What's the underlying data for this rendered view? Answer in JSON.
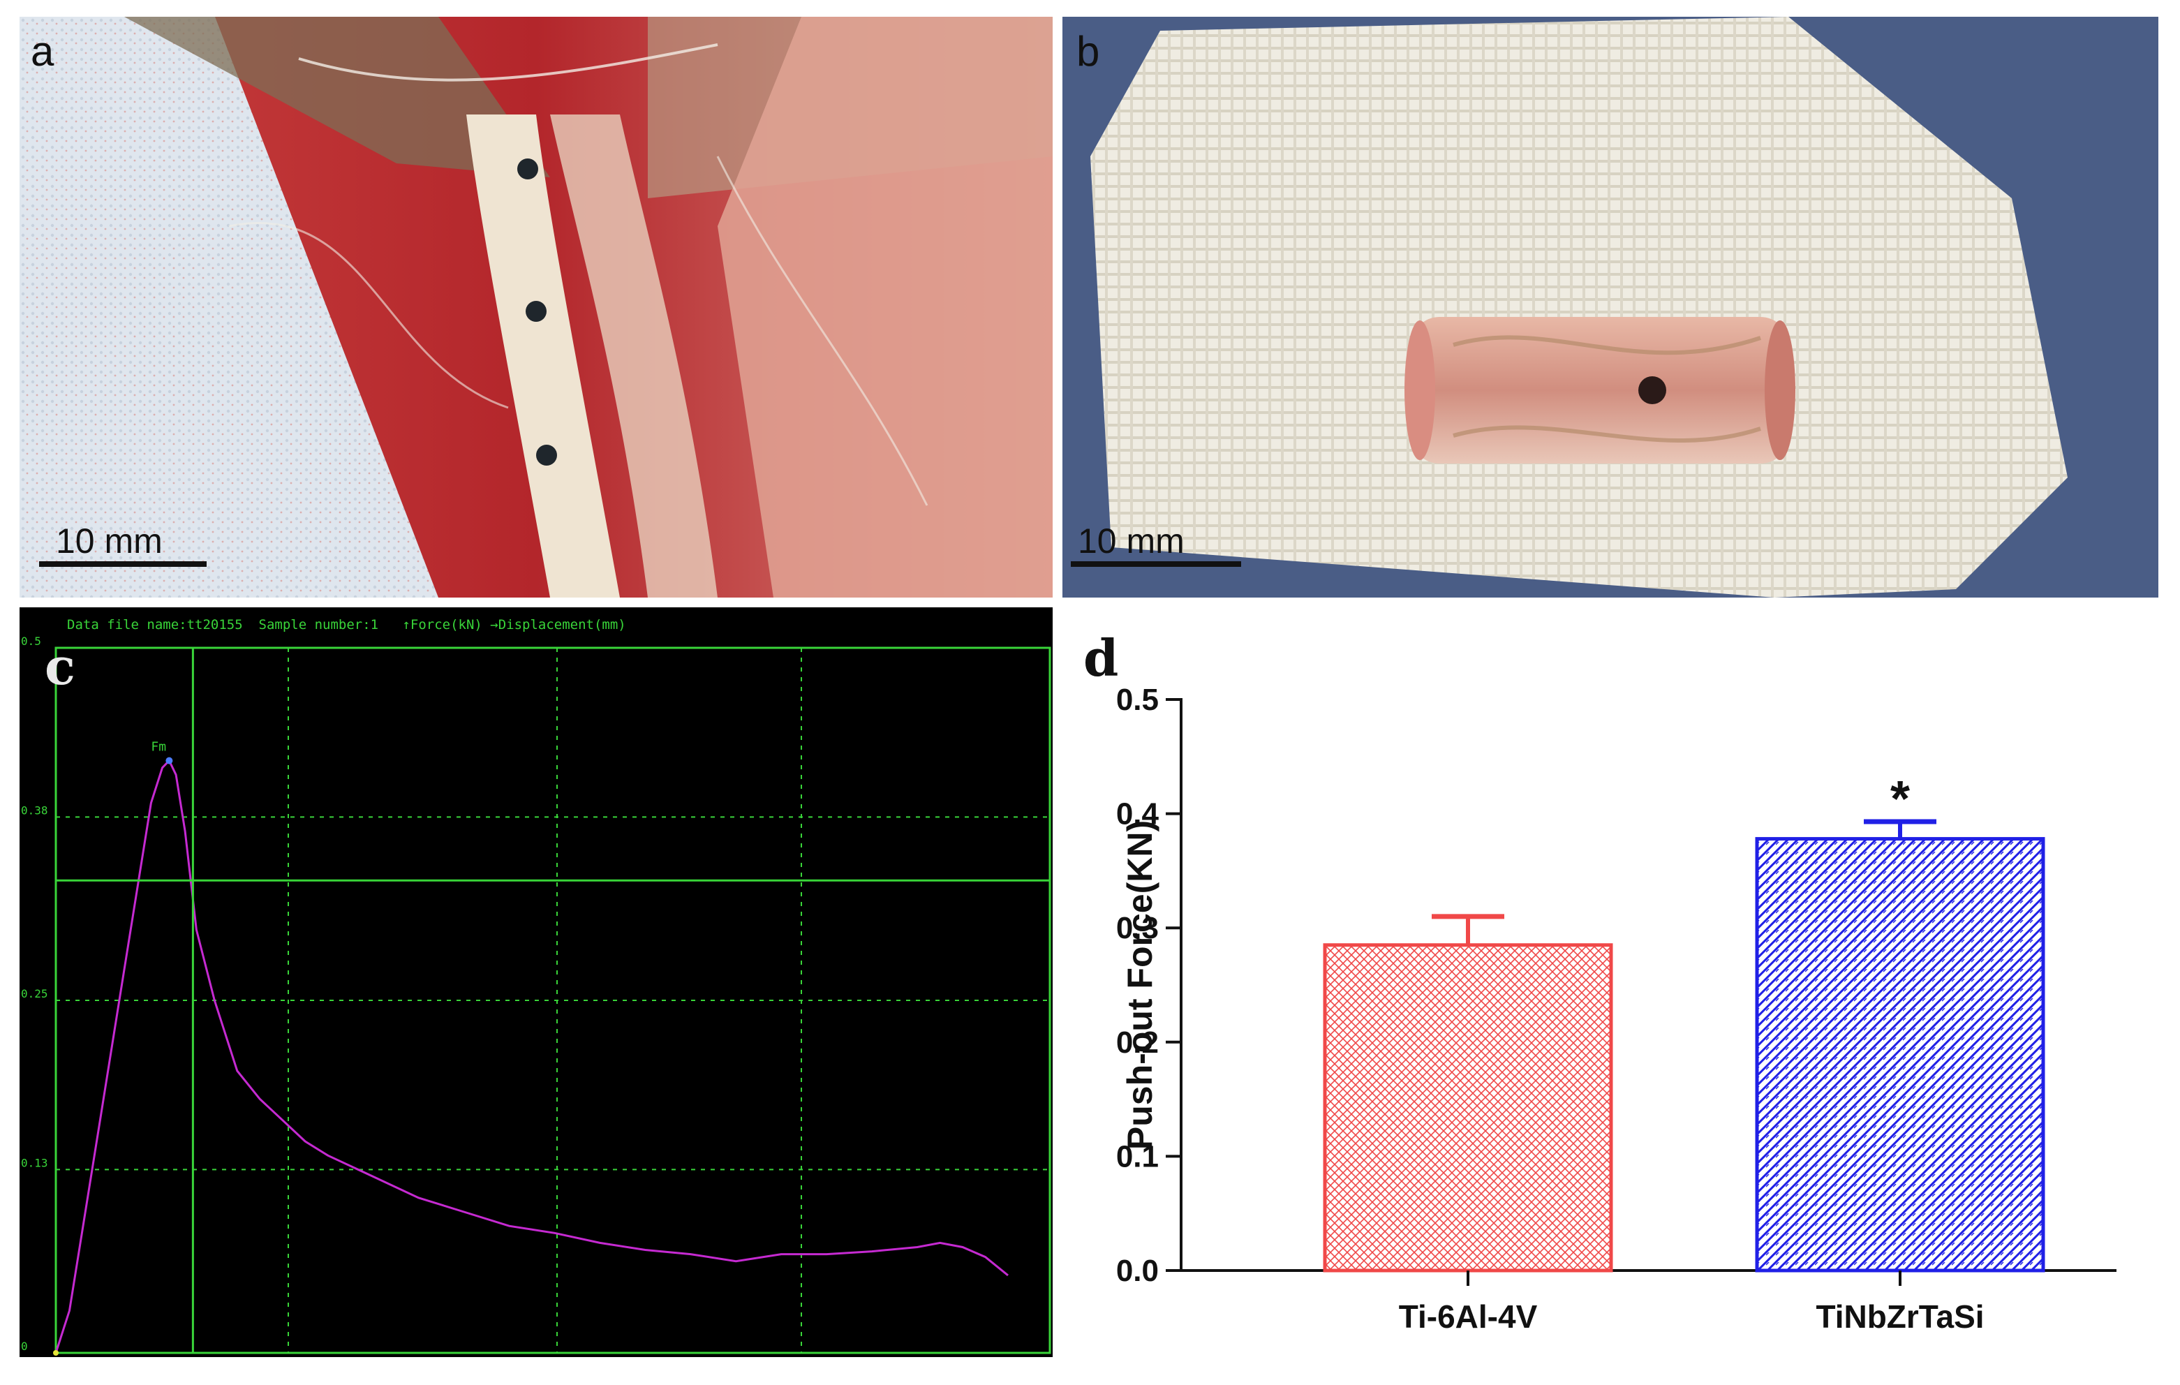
{
  "panels": {
    "a": {
      "label": "a",
      "scale_bar": "10 mm"
    },
    "b": {
      "label": "b",
      "scale_bar": "10 mm"
    },
    "c": {
      "label": "c",
      "header": "Data file name:tt20155  Sample number:1   ↑Force(kN) →Displacement(mm)",
      "peak_label": "Fm",
      "y_ticks": [
        "0",
        "0.13",
        "0.25",
        "0.38",
        "0.5"
      ]
    },
    "d": {
      "label": "d"
    }
  },
  "colors": {
    "ti6al4v": "#f04848",
    "tinbzrtasi": "#2020e6",
    "curve": "#c52ad1",
    "grid": "#39d439"
  },
  "chart_data": [
    {
      "type": "line",
      "panel": "c",
      "ylabel": "Force(kN)",
      "xlabel": "Displacement(mm)",
      "ylim": [
        0,
        0.5
      ],
      "y_ticks": [
        0,
        0.13,
        0.25,
        0.38,
        0.5
      ],
      "grid": true,
      "series": [
        {
          "name": "Force(kN)",
          "x": [
            0,
            0.3,
            0.6,
            1.0,
            1.4,
            1.8,
            2.1,
            2.35,
            2.5,
            2.65,
            2.85,
            3.1,
            3.5,
            4.0,
            4.5,
            5.0,
            5.5,
            6.0,
            7.0,
            8.0,
            9.0,
            10.0,
            11.0,
            12.0,
            13.0,
            14.0,
            15.0,
            16.0,
            17.0,
            18.0,
            19.0,
            19.5,
            20.0,
            20.5,
            21.0
          ],
          "y": [
            0.0,
            0.03,
            0.09,
            0.17,
            0.25,
            0.33,
            0.39,
            0.415,
            0.42,
            0.41,
            0.37,
            0.3,
            0.25,
            0.2,
            0.18,
            0.165,
            0.15,
            0.14,
            0.125,
            0.11,
            0.1,
            0.09,
            0.085,
            0.078,
            0.073,
            0.07,
            0.065,
            0.07,
            0.07,
            0.072,
            0.075,
            0.078,
            0.075,
            0.068,
            0.055
          ]
        }
      ]
    },
    {
      "type": "bar",
      "panel": "d",
      "categories": [
        "Ti-6Al-4V",
        "TiNbZrTaSi"
      ],
      "values": [
        0.285,
        0.378
      ],
      "errors": [
        0.025,
        0.015
      ],
      "significance": [
        "",
        "*"
      ],
      "ylabel": "Push-out Force(KN)",
      "ylim": [
        0,
        0.5
      ],
      "y_ticks": [
        "0.0",
        "0.1",
        "0.2",
        "0.3",
        "0.4",
        "0.5"
      ],
      "grid": false
    }
  ]
}
